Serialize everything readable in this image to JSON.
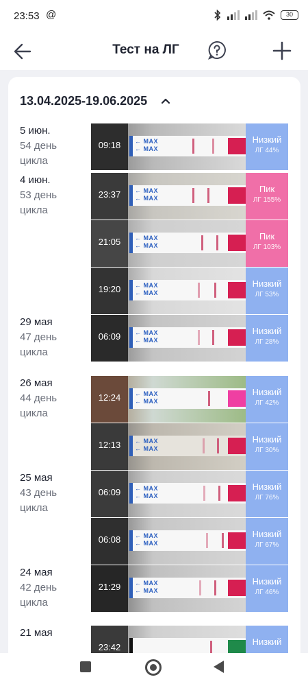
{
  "status_bar": {
    "time": "23:53",
    "at_icon": "@",
    "battery": "30"
  },
  "header": {
    "title": "Тест на ЛГ"
  },
  "range": "13.04.2025-19.06.2025",
  "days": [
    {
      "date": "5 июн.",
      "cycle": "54 день цикла"
    },
    {
      "date": "4 июн.",
      "cycle": "53 день цикла"
    },
    {
      "date": "29 мая",
      "cycle": "47 день цикла"
    },
    {
      "date": "26 мая",
      "cycle": "44 день цикла"
    },
    {
      "date": "25 мая",
      "cycle": "43 день цикла"
    },
    {
      "date": "24 мая",
      "cycle": "42 день цикла"
    },
    {
      "date": "21 мая",
      "cycle": ""
    }
  ],
  "tests": [
    {
      "time": "09:18",
      "status": "Низкий",
      "lh": "ЛГ 44%",
      "type": "low"
    },
    {
      "time": "23:37",
      "status": "Пик",
      "lh": "ЛГ 155%",
      "type": "peak"
    },
    {
      "time": "21:05",
      "status": "Пик",
      "lh": "ЛГ 103%",
      "type": "peak"
    },
    {
      "time": "19:20",
      "status": "Низкий",
      "lh": "ЛГ 53%",
      "type": "low"
    },
    {
      "time": "06:09",
      "status": "Низкий",
      "lh": "ЛГ 28%",
      "type": "low"
    },
    {
      "time": "12:24",
      "status": "Низкий",
      "lh": "ЛГ 42%",
      "type": "low"
    },
    {
      "time": "12:13",
      "status": "Низкий",
      "lh": "ЛГ 30%",
      "type": "low"
    },
    {
      "time": "06:09",
      "status": "Низкий",
      "lh": "ЛГ 76%",
      "type": "low"
    },
    {
      "time": "06:08",
      "status": "Низкий",
      "lh": "ЛГ 67%",
      "type": "low"
    },
    {
      "time": "21:29",
      "status": "Низкий",
      "lh": "ЛГ 46%",
      "type": "low"
    },
    {
      "time": "23:42",
      "status": "Низкий",
      "lh": "",
      "type": "low"
    }
  ],
  "strip_text": "← MAX\n← MAX",
  "colors": {
    "low": "#8fb1f0",
    "peak": "#f06fa8",
    "strip_tip": "#d61f52",
    "strip_blue": "#2a5ec0"
  },
  "icons": [
    "back-arrow-icon",
    "help-chat-icon",
    "plus-icon",
    "chevron-up-icon"
  ]
}
